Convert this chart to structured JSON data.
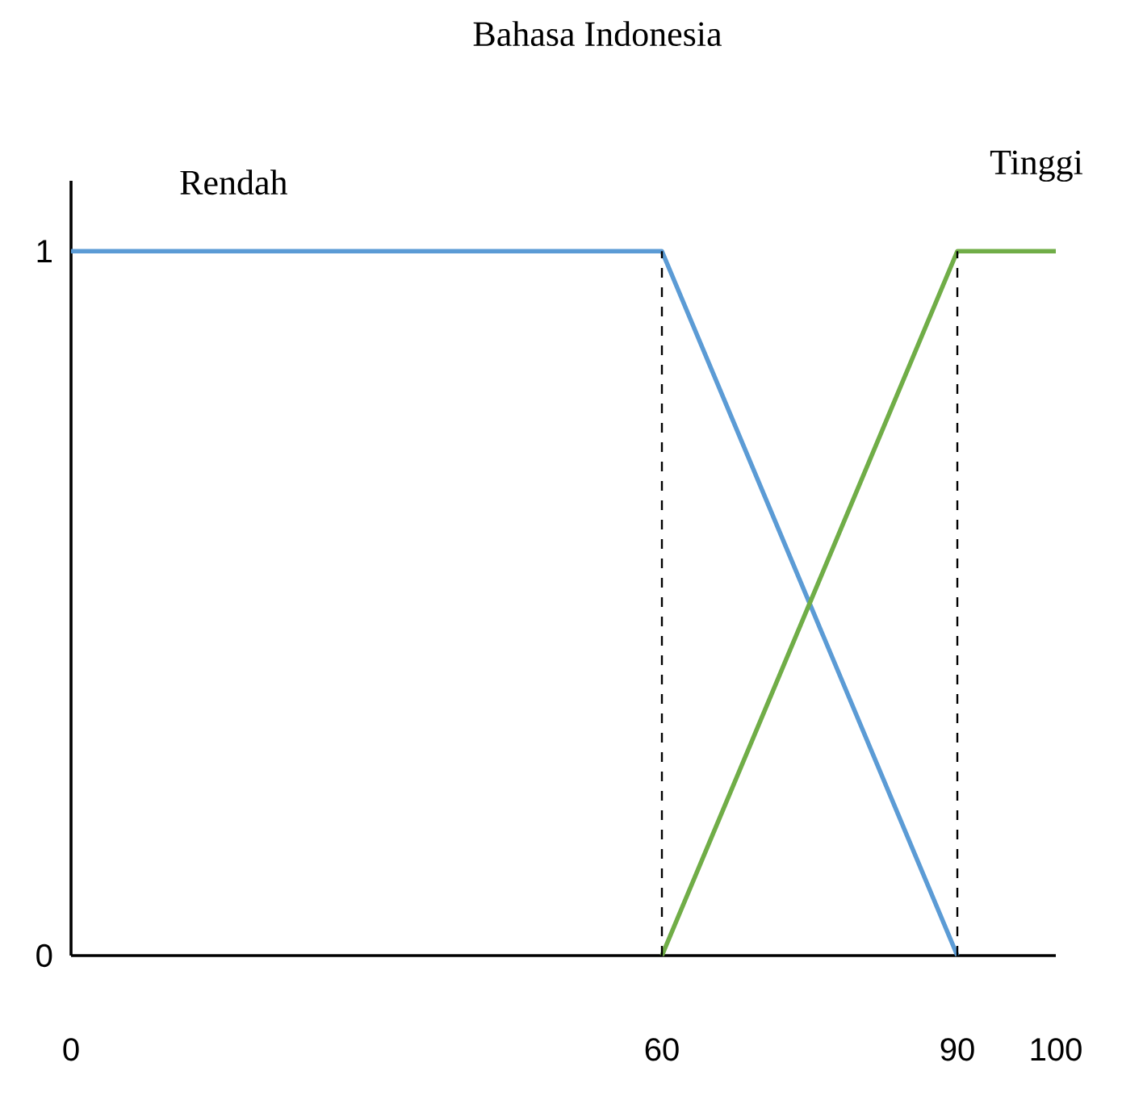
{
  "chart_data": {
    "type": "line",
    "title": "Bahasa Indonesia",
    "xlim": [
      0,
      100
    ],
    "ylim": [
      0,
      1.1
    ],
    "xticks": [
      0,
      60,
      90,
      100
    ],
    "yticks": [
      0,
      1
    ],
    "series": [
      {
        "name": "Rendah",
        "color": "#5b9bd5",
        "x": [
          0,
          60,
          90
        ],
        "values": [
          1,
          1,
          0
        ]
      },
      {
        "name": "Tinggi",
        "color": "#70ad47",
        "x": [
          60,
          90,
          100
        ],
        "values": [
          0,
          1,
          1
        ]
      }
    ],
    "ref_lines": [
      {
        "axis": "x",
        "value": 60,
        "line_style": "dashed",
        "color": "#000000"
      },
      {
        "axis": "x",
        "value": 90,
        "line_style": "dashed",
        "color": "#000000"
      }
    ],
    "grid": false,
    "marker": "none",
    "line_style": "solid"
  }
}
